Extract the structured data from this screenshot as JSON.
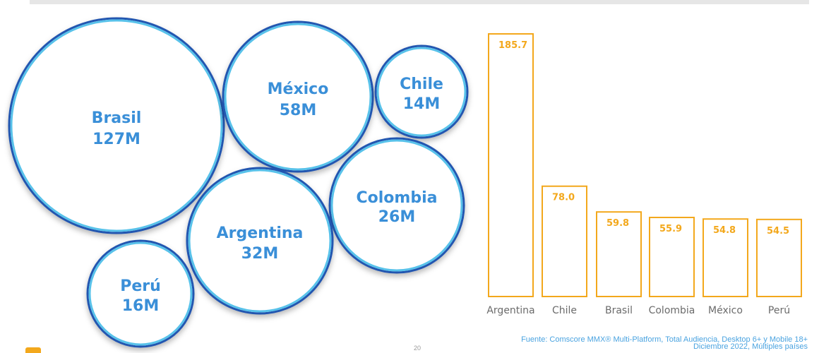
{
  "chart_data": [
    {
      "type": "bubble",
      "bubbles": [
        {
          "label": "Brasil",
          "value_label": "127M",
          "value": 127
        },
        {
          "label": "México",
          "value_label": "58M",
          "value": 58
        },
        {
          "label": "Chile",
          "value_label": "14M",
          "value": 14
        },
        {
          "label": "Colombia",
          "value_label": "26M",
          "value": 26
        },
        {
          "label": "Argentina",
          "value_label": "32M",
          "value": 32
        },
        {
          "label": "Perú",
          "value_label": "16M",
          "value": 16
        }
      ]
    },
    {
      "type": "bar",
      "categories": [
        "Argentina",
        "Chile",
        "Brasil",
        "Colombia",
        "México",
        "Perú"
      ],
      "values": [
        185.7,
        78.0,
        59.8,
        55.9,
        54.8,
        54.5
      ],
      "value_labels": [
        "185.7",
        "78.0",
        "59.8",
        "55.9",
        "54.8",
        "54.5"
      ],
      "ylim": [
        0,
        185.7
      ],
      "colors": {
        "bar_stroke": "#f3a81c",
        "value_text": "#f3a81c"
      }
    }
  ],
  "footer": {
    "source_line1": "Fuente: Comscore MMX® Multi-Platform, Total Audiencia, Desktop 6+ y Mobile 18+",
    "source_line2": "Diciembre 2022, Múltiples países",
    "page_number": "20"
  },
  "colors": {
    "bubble_outer": "#2456b0",
    "bubble_inner": "#58c2ea",
    "bubble_text": "#3a8fd8",
    "accent": "#f3a81c"
  }
}
